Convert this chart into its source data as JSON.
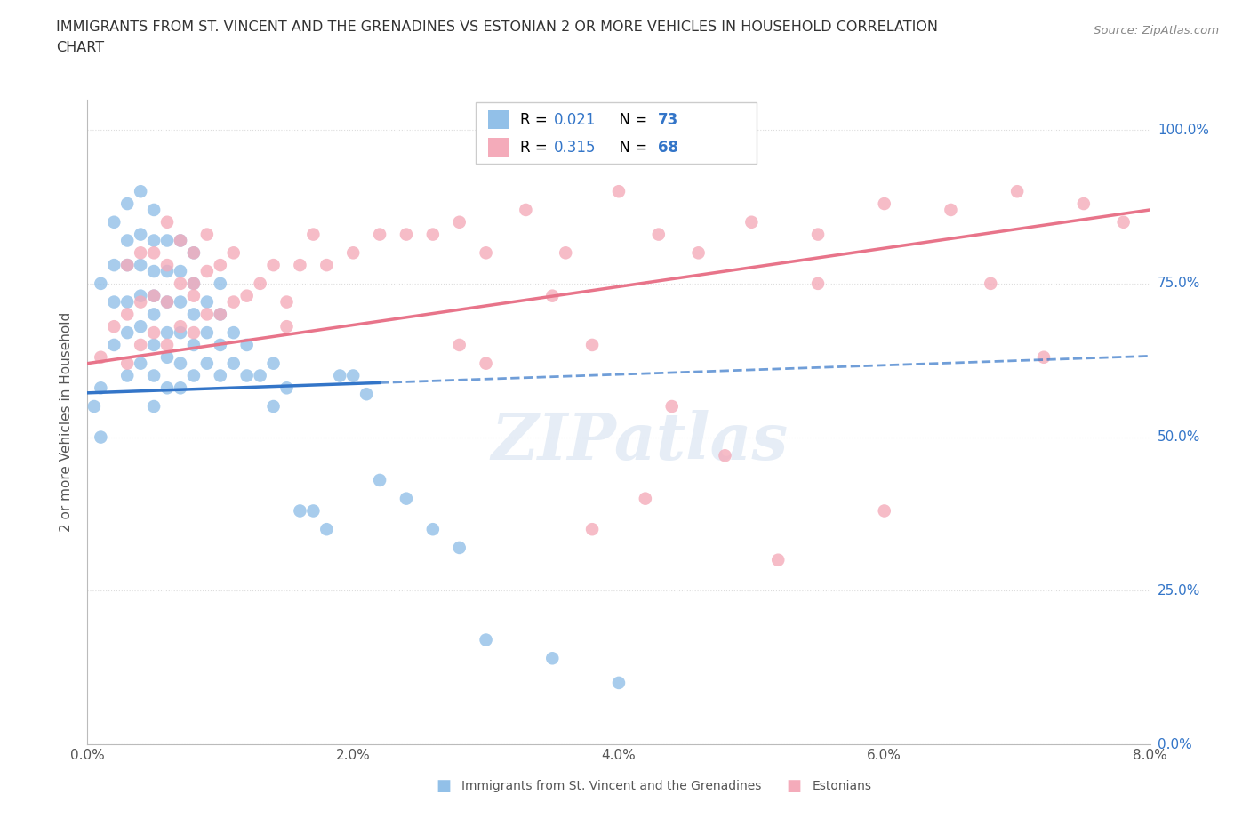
{
  "title_line1": "IMMIGRANTS FROM ST. VINCENT AND THE GRENADINES VS ESTONIAN 2 OR MORE VEHICLES IN HOUSEHOLD CORRELATION",
  "title_line2": "CHART",
  "source": "Source: ZipAtlas.com",
  "ylabel": "2 or more Vehicles in Household",
  "xlim": [
    0.0,
    0.08
  ],
  "ylim": [
    0.0,
    1.05
  ],
  "xticks": [
    0.0,
    0.01,
    0.02,
    0.03,
    0.04,
    0.05,
    0.06,
    0.07,
    0.08
  ],
  "xticklabels": [
    "0.0%",
    "",
    "2.0%",
    "",
    "4.0%",
    "",
    "6.0%",
    "",
    "8.0%"
  ],
  "ytick_positions": [
    0.0,
    0.25,
    0.5,
    0.75,
    1.0
  ],
  "ytick_labels": [
    "0.0%",
    "25.0%",
    "50.0%",
    "75.0%",
    "100.0%"
  ],
  "blue_color": "#92C0E8",
  "pink_color": "#F4ABBA",
  "blue_line_color": "#3375C8",
  "pink_line_color": "#E8748A",
  "r_value_color": "#3375C8",
  "n_value_color": "#3375C8",
  "watermark": "ZIPatlas",
  "blue_scatter_x": [
    0.0005,
    0.001,
    0.001,
    0.001,
    0.002,
    0.002,
    0.002,
    0.002,
    0.003,
    0.003,
    0.003,
    0.003,
    0.003,
    0.003,
    0.004,
    0.004,
    0.004,
    0.004,
    0.004,
    0.004,
    0.005,
    0.005,
    0.005,
    0.005,
    0.005,
    0.005,
    0.005,
    0.005,
    0.006,
    0.006,
    0.006,
    0.006,
    0.006,
    0.006,
    0.007,
    0.007,
    0.007,
    0.007,
    0.007,
    0.007,
    0.008,
    0.008,
    0.008,
    0.008,
    0.008,
    0.009,
    0.009,
    0.009,
    0.01,
    0.01,
    0.01,
    0.01,
    0.011,
    0.011,
    0.012,
    0.012,
    0.013,
    0.014,
    0.014,
    0.015,
    0.016,
    0.017,
    0.018,
    0.019,
    0.02,
    0.021,
    0.022,
    0.024,
    0.026,
    0.028,
    0.03,
    0.035,
    0.04
  ],
  "blue_scatter_y": [
    0.55,
    0.5,
    0.58,
    0.75,
    0.65,
    0.72,
    0.78,
    0.85,
    0.6,
    0.67,
    0.72,
    0.78,
    0.82,
    0.88,
    0.62,
    0.68,
    0.73,
    0.78,
    0.83,
    0.9,
    0.55,
    0.6,
    0.65,
    0.7,
    0.73,
    0.77,
    0.82,
    0.87,
    0.58,
    0.63,
    0.67,
    0.72,
    0.77,
    0.82,
    0.58,
    0.62,
    0.67,
    0.72,
    0.77,
    0.82,
    0.6,
    0.65,
    0.7,
    0.75,
    0.8,
    0.62,
    0.67,
    0.72,
    0.6,
    0.65,
    0.7,
    0.75,
    0.62,
    0.67,
    0.6,
    0.65,
    0.6,
    0.55,
    0.62,
    0.58,
    0.38,
    0.38,
    0.35,
    0.6,
    0.6,
    0.57,
    0.43,
    0.4,
    0.35,
    0.32,
    0.17,
    0.14,
    0.1
  ],
  "pink_scatter_x": [
    0.001,
    0.002,
    0.003,
    0.003,
    0.003,
    0.004,
    0.004,
    0.004,
    0.005,
    0.005,
    0.005,
    0.006,
    0.006,
    0.006,
    0.006,
    0.007,
    0.007,
    0.007,
    0.008,
    0.008,
    0.008,
    0.009,
    0.009,
    0.009,
    0.01,
    0.01,
    0.011,
    0.011,
    0.012,
    0.013,
    0.014,
    0.015,
    0.016,
    0.017,
    0.018,
    0.02,
    0.022,
    0.024,
    0.026,
    0.028,
    0.03,
    0.033,
    0.036,
    0.04,
    0.043,
    0.046,
    0.05,
    0.055,
    0.06,
    0.065,
    0.07,
    0.072,
    0.075,
    0.078,
    0.008,
    0.015,
    0.03,
    0.038,
    0.042,
    0.028,
    0.035,
    0.048,
    0.06,
    0.068,
    0.052,
    0.044,
    0.038,
    0.055
  ],
  "pink_scatter_y": [
    0.63,
    0.68,
    0.62,
    0.7,
    0.78,
    0.65,
    0.72,
    0.8,
    0.67,
    0.73,
    0.8,
    0.65,
    0.72,
    0.78,
    0.85,
    0.68,
    0.75,
    0.82,
    0.67,
    0.73,
    0.8,
    0.7,
    0.77,
    0.83,
    0.7,
    0.78,
    0.72,
    0.8,
    0.73,
    0.75,
    0.78,
    0.72,
    0.78,
    0.83,
    0.78,
    0.8,
    0.83,
    0.83,
    0.83,
    0.85,
    0.8,
    0.87,
    0.8,
    0.9,
    0.83,
    0.8,
    0.85,
    0.83,
    0.88,
    0.87,
    0.9,
    0.63,
    0.88,
    0.85,
    0.75,
    0.68,
    0.62,
    0.35,
    0.4,
    0.65,
    0.73,
    0.47,
    0.38,
    0.75,
    0.3,
    0.55,
    0.65,
    0.75
  ],
  "blue_trend_x0": 0.0,
  "blue_trend_y0": 0.572,
  "blue_trend_x1": 0.08,
  "blue_trend_y1": 0.632,
  "pink_trend_x0": 0.0,
  "pink_trend_y0": 0.62,
  "pink_trend_x1": 0.08,
  "pink_trend_y1": 0.87
}
